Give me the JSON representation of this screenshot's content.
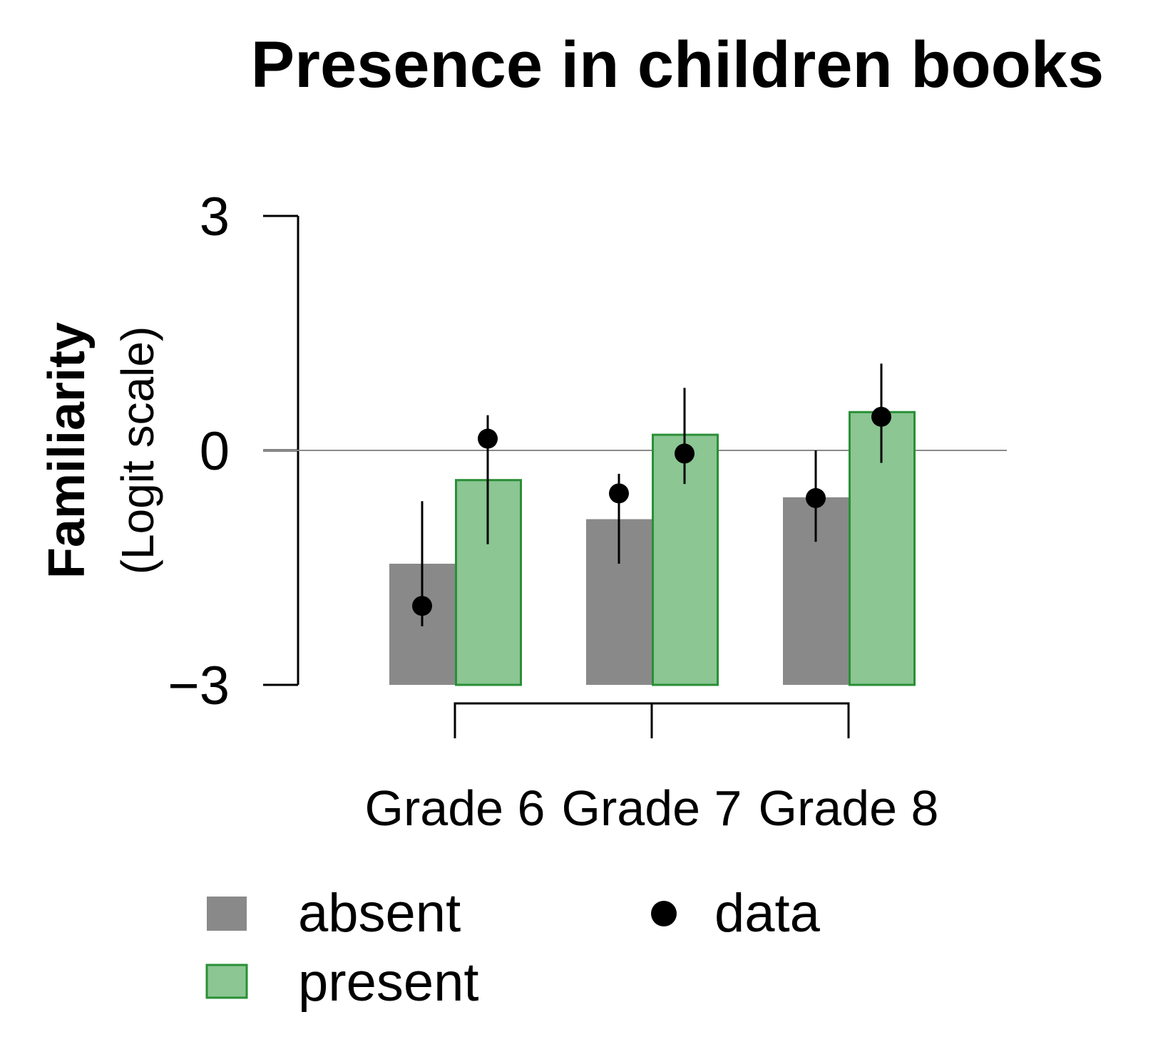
{
  "chart_data": {
    "type": "bar",
    "title": "Presence in children books",
    "ylabel": "Familiarity",
    "ylabel_sub": "(Logit scale)",
    "xlabel": "",
    "ylim": [
      -3,
      3
    ],
    "yticks": [
      {
        "value": -3,
        "label": "−3"
      },
      {
        "value": 0,
        "label": "0"
      },
      {
        "value": 3,
        "label": "3"
      }
    ],
    "reference_line": 0,
    "categories": [
      "Grade 6",
      "Grade 7",
      "Grade 8"
    ],
    "series": [
      {
        "name": "absent",
        "color": "#898989",
        "values": [
          -1.45,
          -0.88,
          -0.6
        ],
        "data_points": [
          -1.99,
          -0.55,
          -0.61
        ],
        "errors_low": [
          -2.25,
          -1.45,
          -1.17
        ],
        "errors_high": [
          -0.65,
          -0.3,
          0.0
        ]
      },
      {
        "name": "present",
        "color": "#8bc693",
        "border_color": "#2a8f36",
        "values": [
          -0.38,
          0.2,
          0.49
        ],
        "data_points": [
          0.15,
          -0.04,
          0.43
        ],
        "errors_low": [
          -1.2,
          -0.43,
          -0.16
        ],
        "errors_high": [
          0.45,
          0.8,
          1.11
        ]
      }
    ],
    "legend": {
      "position": "bottom",
      "entries": [
        {
          "label": "absent",
          "kind": "bar",
          "color": "#898989"
        },
        {
          "label": "present",
          "kind": "bar",
          "color": "#8bc693",
          "border_color": "#2a8f36"
        },
        {
          "label": "data",
          "kind": "point",
          "color": "#000000"
        }
      ]
    }
  }
}
